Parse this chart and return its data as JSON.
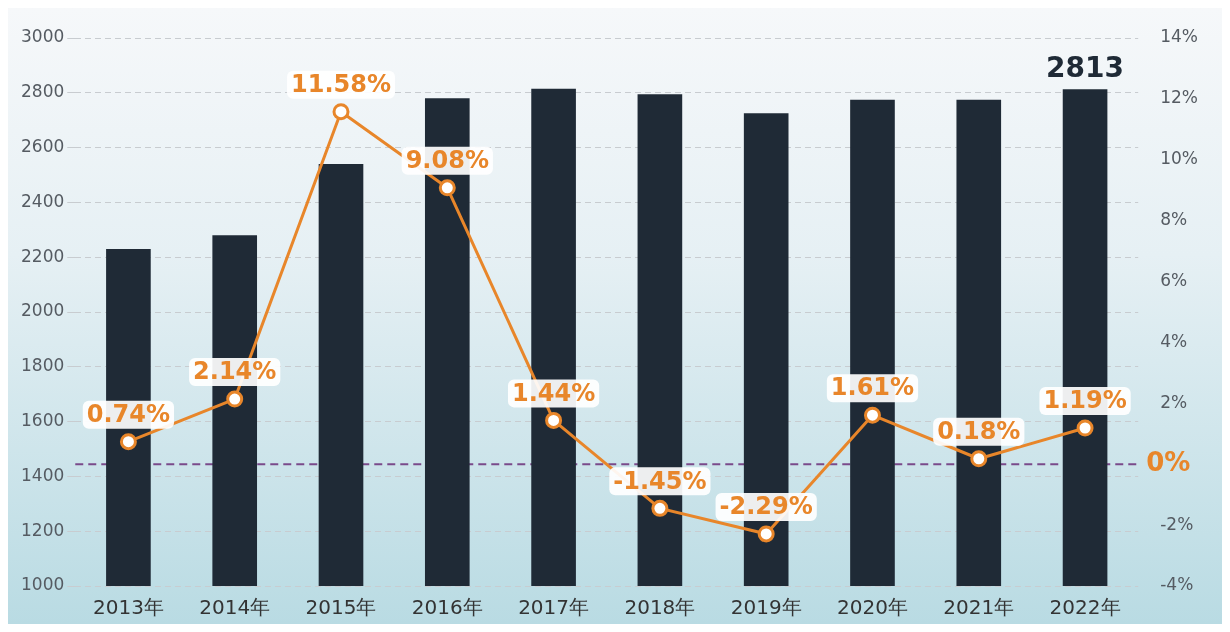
{
  "chart_data": {
    "type": "bar",
    "categories": [
      "2013年",
      "2014年",
      "2015年",
      "2016年",
      "2017年",
      "2018年",
      "2019年",
      "2020年",
      "2021年",
      "2022年"
    ],
    "series": [
      {
        "color": "#1f2a36",
        "values": [
          2230,
          2280,
          2540,
          2780,
          2815,
          2795,
          2725,
          2775,
          2775,
          2813
        ],
        "value_labels": [
          null,
          null,
          null,
          null,
          null,
          null,
          null,
          null,
          null,
          "2813"
        ]
      },
      {
        "type": "line",
        "axis": "y2",
        "color": "#e8862a",
        "values": [
          0.74,
          2.14,
          11.58,
          9.08,
          1.44,
          -1.45,
          -2.29,
          1.61,
          0.18,
          1.19
        ],
        "value_labels": [
          "0.74%",
          "2.14%",
          "11.58%",
          "9.08%",
          "1.44%",
          "-1.45%",
          "-2.29%",
          "1.61%",
          "0.18%",
          "1.19%"
        ]
      }
    ],
    "ylim": [
      1000,
      3000
    ],
    "yticks": [
      1000,
      1200,
      1400,
      1600,
      1800,
      2000,
      2200,
      2400,
      2600,
      2800,
      3000
    ],
    "y2lim": [
      -4,
      14
    ],
    "y2ticks": [
      {
        "value": -4,
        "label": "-4%"
      },
      {
        "value": -2,
        "label": "-2%"
      },
      {
        "value": 0,
        "label": null
      },
      {
        "value": 2,
        "label": "2%"
      },
      {
        "value": 4,
        "label": "4%"
      },
      {
        "value": 6,
        "label": "6%"
      },
      {
        "value": 8,
        "label": "8%"
      },
      {
        "value": 10,
        "label": "10%"
      },
      {
        "value": 12,
        "label": "12%"
      },
      {
        "value": 14,
        "label": "14%"
      }
    ],
    "ref_lines": [
      {
        "axis": "y2",
        "value": 0,
        "label": "0%",
        "color": "#7a4a8a",
        "line_style": "dashed"
      }
    ],
    "grid": "y",
    "legend": false,
    "marker": "circle",
    "line_style": "solid"
  }
}
